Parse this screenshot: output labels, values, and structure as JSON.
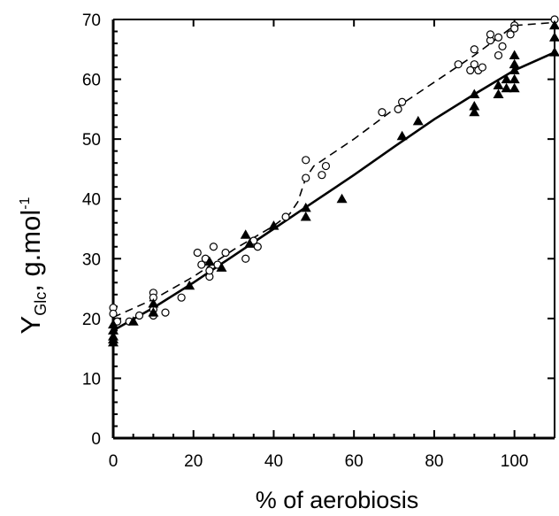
{
  "chart_data": {
    "type": "scatter",
    "title": "",
    "xlabel": "% of aerobiosis",
    "ylabel": {
      "main": "Y",
      "sub": "Glc",
      "rest": ", g.mol",
      "sup": "-1"
    },
    "xlim": [
      0,
      110
    ],
    "ylim": [
      0,
      70
    ],
    "x_ticks": [
      0,
      20,
      40,
      60,
      80,
      100
    ],
    "y_ticks": [
      0,
      10,
      20,
      30,
      40,
      50,
      60,
      70
    ],
    "grid": false,
    "legend": "none",
    "colors": {
      "ink": "#000000",
      "background": "#ffffff"
    },
    "series": [
      {
        "marker": "open-circle",
        "points": [
          [
            0,
            21.8
          ],
          [
            0,
            20.8
          ],
          [
            1,
            19.5
          ],
          [
            4,
            19.5
          ],
          [
            6.5,
            20.5
          ],
          [
            10,
            24.3
          ],
          [
            10,
            23.5
          ],
          [
            10,
            21.5
          ],
          [
            10,
            20.5
          ],
          [
            13,
            21.0
          ],
          [
            17,
            23.5
          ],
          [
            21,
            31.0
          ],
          [
            22,
            29.0
          ],
          [
            23,
            30.0
          ],
          [
            24,
            27.0
          ],
          [
            24,
            28.0
          ],
          [
            25,
            32.0
          ],
          [
            26,
            29.0
          ],
          [
            28,
            31.0
          ],
          [
            33,
            30.0
          ],
          [
            35,
            33.0
          ],
          [
            36,
            32.0
          ],
          [
            43,
            37.0
          ],
          [
            48,
            43.5
          ],
          [
            48,
            46.5
          ],
          [
            52,
            44.0
          ],
          [
            53,
            45.5
          ],
          [
            67,
            54.5
          ],
          [
            71,
            55.0
          ],
          [
            72,
            56.2
          ],
          [
            86,
            62.5
          ],
          [
            89,
            61.5
          ],
          [
            90,
            62.5
          ],
          [
            90,
            65.0
          ],
          [
            91,
            61.5
          ],
          [
            92,
            62.0
          ],
          [
            94,
            66.5
          ],
          [
            94,
            67.5
          ],
          [
            96,
            67.0
          ],
          [
            96,
            64.0
          ],
          [
            97,
            65.5
          ],
          [
            99,
            67.5
          ],
          [
            100,
            69.0
          ],
          [
            100,
            68.5
          ],
          [
            110,
            70.0
          ]
        ]
      },
      {
        "marker": "filled-triangle",
        "points": [
          [
            0,
            19.0
          ],
          [
            0,
            18.0
          ],
          [
            0,
            17.0
          ],
          [
            0,
            16.5
          ],
          [
            0,
            16.0
          ],
          [
            5,
            19.5
          ],
          [
            10,
            22.5
          ],
          [
            10,
            21.0
          ],
          [
            19,
            25.5
          ],
          [
            24,
            29.5
          ],
          [
            27,
            28.5
          ],
          [
            33,
            34.0
          ],
          [
            34,
            32.5
          ],
          [
            40,
            35.5
          ],
          [
            48,
            38.5
          ],
          [
            48,
            37.0
          ],
          [
            57,
            40.0
          ],
          [
            72,
            50.5
          ],
          [
            76,
            53.0
          ],
          [
            90,
            57.5
          ],
          [
            90,
            55.5
          ],
          [
            90,
            54.5
          ],
          [
            96,
            59.0
          ],
          [
            96,
            57.5
          ],
          [
            98,
            60.0
          ],
          [
            98,
            58.5
          ],
          [
            100,
            64.0
          ],
          [
            100,
            62.5
          ],
          [
            100,
            61.5
          ],
          [
            100,
            60.0
          ],
          [
            100,
            58.5
          ],
          [
            110,
            69.0
          ],
          [
            110,
            67.0
          ],
          [
            110,
            64.5
          ]
        ]
      }
    ],
    "fit_lines": [
      {
        "style": "solid",
        "points": [
          [
            0,
            18
          ],
          [
            10,
            21.8
          ],
          [
            20,
            26
          ],
          [
            30,
            30.5
          ],
          [
            40,
            35
          ],
          [
            50,
            39.5
          ],
          [
            60,
            44
          ],
          [
            70,
            48.7
          ],
          [
            80,
            53.3
          ],
          [
            90,
            57.5
          ],
          [
            100,
            61.5
          ],
          [
            110,
            64.5
          ]
        ]
      },
      {
        "style": "dashed",
        "points": [
          [
            0,
            20.2
          ],
          [
            10,
            23.2
          ],
          [
            20,
            27
          ],
          [
            30,
            31.5
          ],
          [
            40,
            35.5
          ],
          [
            44,
            37.5
          ],
          [
            46,
            39.5
          ],
          [
            47,
            41.5
          ],
          [
            48,
            43.5
          ],
          [
            50,
            45.5
          ],
          [
            60,
            50
          ],
          [
            70,
            55
          ],
          [
            80,
            59.5
          ],
          [
            90,
            64
          ],
          [
            95,
            66.5
          ],
          [
            100,
            69
          ],
          [
            110,
            69.5
          ]
        ]
      }
    ]
  }
}
